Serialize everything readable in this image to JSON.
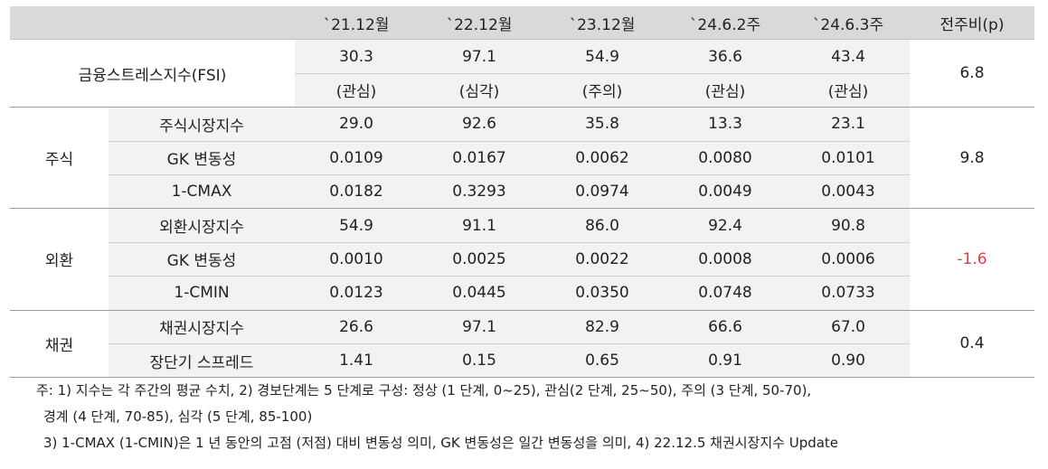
{
  "header": {
    "columns": [
      "`21.12월",
      "`22.12월",
      "`23.12월",
      "`24.6.2주",
      "`24.6.3주",
      "전주비(p)"
    ]
  },
  "fsi": {
    "label": "금융스트레스지수(FSI)",
    "values": [
      "30.3",
      "97.1",
      "54.9",
      "36.6",
      "43.4"
    ],
    "levels": [
      "(관심)",
      "(심각)",
      "(주의)",
      "(관심)",
      "(관심)"
    ],
    "change": "6.8"
  },
  "groups": [
    {
      "name": "주식",
      "change": "9.8",
      "rows": [
        {
          "label": "주식시장지수",
          "values": [
            "29.0",
            "92.6",
            "35.8",
            "13.3",
            "23.1"
          ]
        },
        {
          "label": "GK 변동성",
          "values": [
            "0.0109",
            "0.0167",
            "0.0062",
            "0.0080",
            "0.0101"
          ]
        },
        {
          "label": "1-CMAX",
          "values": [
            "0.0182",
            "0.3293",
            "0.0974",
            "0.0049",
            "0.0043"
          ]
        }
      ]
    },
    {
      "name": "외환",
      "change": "-1.6",
      "change_color": "#e04040",
      "rows": [
        {
          "label": "외환시장지수",
          "values": [
            "54.9",
            "91.1",
            "86.0",
            "92.4",
            "90.8"
          ]
        },
        {
          "label": "GK 변동성",
          "values": [
            "0.0010",
            "0.0025",
            "0.0022",
            "0.0008",
            "0.0006"
          ]
        },
        {
          "label": "1-CMIN",
          "values": [
            "0.0123",
            "0.0445",
            "0.0350",
            "0.0748",
            "0.0733"
          ]
        }
      ]
    },
    {
      "name": "채권",
      "change": "0.4",
      "rows": [
        {
          "label": "채권시장지수",
          "values": [
            "26.6",
            "97.1",
            "82.9",
            "66.6",
            "67.0"
          ]
        },
        {
          "label": "장단기 스프레드",
          "values": [
            "1.41",
            "0.15",
            "0.65",
            "0.91",
            "0.90"
          ]
        }
      ]
    }
  ],
  "notes": {
    "line1": "주: 1) 지수는 각 주간의 평균 수치, 2) 경보단계는 5 단계로 구성: 정상 (1 단계, 0~25), 관심(2 단계, 25~50), 주의 (3 단계, 50-70),",
    "line2": "경계 (4 단계, 70-85), 심각 (5 단계, 85-100)",
    "line3": "3) 1-CMAX (1-CMIN)은 1 년 동안의 고점 (저점) 대비 변동성 의미, GK 변동성은 일간 변동성을 의미, 4) 22.12.5 채권시장지수 Update"
  }
}
